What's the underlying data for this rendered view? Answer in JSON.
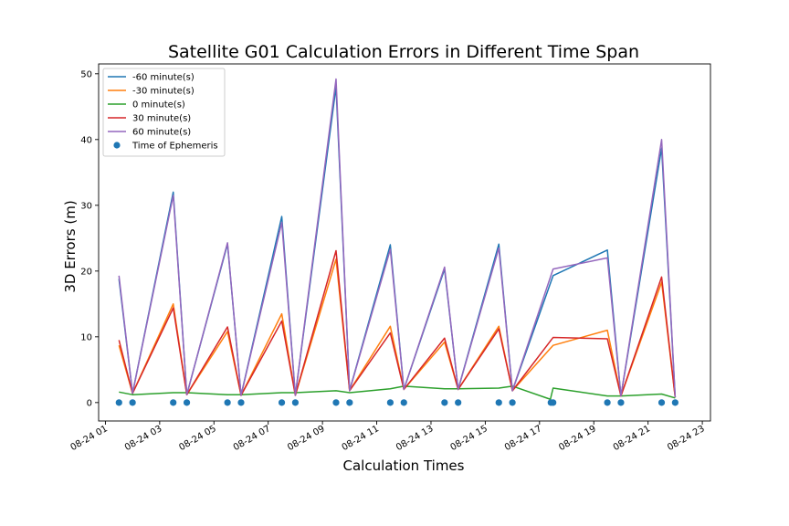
{
  "chart_data": {
    "type": "line",
    "title": "Satellite G01 Calculation Errors in Different Time Span",
    "xlabel": "Calculation Times",
    "ylabel": "3D Errors (m)",
    "xlim": [
      0.75,
      23.3
    ],
    "ylim": [
      -2.8,
      51.5
    ],
    "y_ticks": [
      0,
      10,
      20,
      30,
      40,
      50
    ],
    "x_ticks": [
      {
        "value": 1,
        "label": "08-24 01"
      },
      {
        "value": 3,
        "label": "08-24 03"
      },
      {
        "value": 5,
        "label": "08-24 05"
      },
      {
        "value": 7,
        "label": "08-24 07"
      },
      {
        "value": 9,
        "label": "08-24 09"
      },
      {
        "value": 11,
        "label": "08-24 11"
      },
      {
        "value": 13,
        "label": "08-24 13"
      },
      {
        "value": 15,
        "label": "08-24 15"
      },
      {
        "value": 17,
        "label": "08-24 17"
      },
      {
        "value": 19,
        "label": "08-24 19"
      },
      {
        "value": 21,
        "label": "08-24 21"
      },
      {
        "value": 23,
        "label": "08-24 23"
      }
    ],
    "grid": false,
    "legend": "top-left",
    "series": [
      {
        "name": "-60 minute(s)",
        "color": "#1f77b4",
        "x": [
          1.5,
          2.0,
          3.5,
          4.0,
          5.5,
          6.0,
          7.5,
          8.0,
          9.5,
          10.0,
          11.5,
          12.0,
          13.5,
          14.0,
          15.5,
          16.0,
          17.5,
          19.5,
          20.0,
          21.5,
          22.0
        ],
        "y": [
          18.8,
          1.4,
          32.0,
          1.2,
          24.1,
          1.1,
          28.3,
          1.1,
          48.0,
          1.8,
          24.0,
          2.0,
          20.3,
          2.0,
          24.1,
          1.8,
          19.3,
          23.2,
          1.0,
          38.7,
          0.8
        ]
      },
      {
        "name": "-30 minute(s)",
        "color": "#ff7f0e",
        "x": [
          1.5,
          2.0,
          3.5,
          4.0,
          5.5,
          6.0,
          7.5,
          8.0,
          9.5,
          10.0,
          11.5,
          12.0,
          13.5,
          14.0,
          15.5,
          16.0,
          17.5,
          19.5,
          20.0,
          21.5,
          22.0
        ],
        "y": [
          8.7,
          1.4,
          15.0,
          1.2,
          10.8,
          1.1,
          13.5,
          1.1,
          21.8,
          1.8,
          11.6,
          2.0,
          9.2,
          2.0,
          11.6,
          1.8,
          8.7,
          11.0,
          1.0,
          18.3,
          0.8
        ]
      },
      {
        "name": "0 minute(s)",
        "color": "#2ca02c",
        "x": [
          1.5,
          2.0,
          3.5,
          4.0,
          5.5,
          6.0,
          7.5,
          8.0,
          9.5,
          10.0,
          11.5,
          12.0,
          13.5,
          14.0,
          15.5,
          16.0,
          17.4,
          17.5,
          19.5,
          20.0,
          21.5,
          22.0
        ],
        "y": [
          1.6,
          1.2,
          1.5,
          1.5,
          1.2,
          1.2,
          1.5,
          1.5,
          1.8,
          1.5,
          2.1,
          2.5,
          2.1,
          2.1,
          2.2,
          2.5,
          0.5,
          2.2,
          1.0,
          1.0,
          1.3,
          0.7
        ]
      },
      {
        "name": "30 minute(s)",
        "color": "#d62728",
        "x": [
          1.5,
          2.0,
          3.5,
          4.0,
          5.5,
          6.0,
          7.5,
          8.0,
          9.5,
          10.0,
          11.5,
          12.0,
          13.5,
          14.0,
          15.5,
          16.0,
          17.5,
          19.5,
          20.0,
          21.5,
          22.0
        ],
        "y": [
          9.5,
          1.4,
          14.4,
          1.2,
          11.5,
          1.1,
          12.4,
          1.1,
          23.1,
          1.8,
          10.6,
          2.0,
          9.8,
          2.0,
          11.2,
          1.8,
          9.9,
          9.7,
          1.0,
          19.1,
          0.8
        ]
      },
      {
        "name": "60 minute(s)",
        "color": "#9467bd",
        "x": [
          1.5,
          2.0,
          3.5,
          4.0,
          5.5,
          6.0,
          7.5,
          8.0,
          9.5,
          10.0,
          11.5,
          12.0,
          13.5,
          14.0,
          15.5,
          16.0,
          17.5,
          19.5,
          20.0,
          21.5,
          22.0
        ],
        "y": [
          19.3,
          1.4,
          31.5,
          1.2,
          24.3,
          1.1,
          27.4,
          1.1,
          49.2,
          1.8,
          23.3,
          2.0,
          20.6,
          2.0,
          23.5,
          1.8,
          20.3,
          22.0,
          1.0,
          40.0,
          0.8
        ]
      }
    ],
    "scatter": {
      "name": "Time of Ephemeris",
      "color": "#1f77b4",
      "x": [
        1.5,
        2.0,
        3.5,
        4.0,
        5.5,
        6.0,
        7.5,
        8.0,
        9.5,
        10.0,
        11.5,
        12.0,
        13.5,
        14.0,
        15.5,
        16.0,
        17.42,
        17.5,
        19.5,
        20.0,
        21.5,
        22.0
      ],
      "y": [
        0,
        0,
        0,
        0,
        0,
        0,
        0,
        0,
        0,
        0,
        0,
        0,
        0,
        0,
        0,
        0,
        0,
        0,
        0,
        0,
        0,
        0
      ]
    }
  }
}
